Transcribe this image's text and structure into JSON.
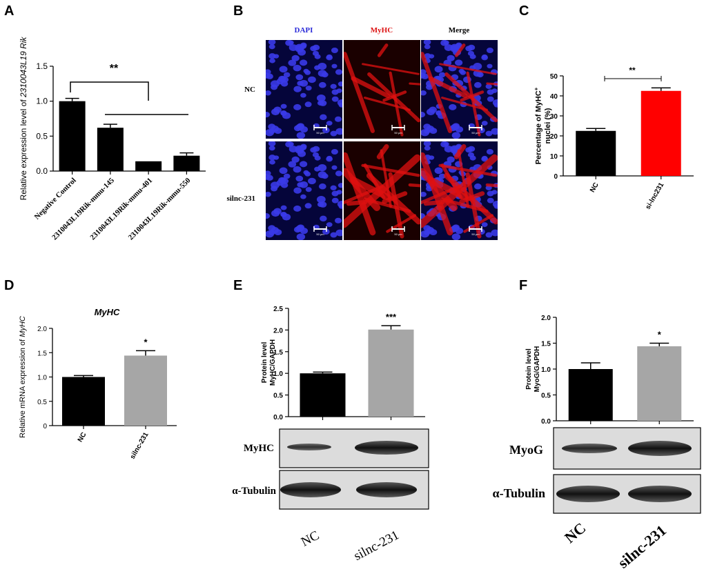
{
  "panel_letters": {
    "a": "A",
    "b": "B",
    "c": "C",
    "d": "D",
    "e": "E",
    "f": "F"
  },
  "colors": {
    "black_bar": "#000000",
    "gray_bar": "#a6a6a6",
    "red_bar": "#ff0000",
    "dapi": "#2020dd",
    "myhc": "#dd1111"
  },
  "micro": {
    "columns": [
      "DAPI",
      "MyHC",
      "Merge"
    ],
    "rows": [
      "NC",
      "silnc-231"
    ],
    "scale_label": "50 μm"
  },
  "blots": {
    "e": {
      "top_label": "MyHC",
      "bottom_label": "α-Tubulin",
      "lanes": [
        "NC",
        "silnc-231"
      ]
    },
    "f": {
      "top_label": "MyoG",
      "bottom_label": "α-Tubulin",
      "lanes": [
        "NC",
        "silnc-231"
      ]
    }
  },
  "chart_data": [
    {
      "id": "A",
      "type": "bar",
      "categories": [
        "Negative Control",
        "2310043L19Rik-mmu-145",
        "2310043L19Rik-mmu-401",
        "2310043L19Rik-mmu-550"
      ],
      "values": [
        1.0,
        0.62,
        0.14,
        0.22
      ],
      "errors": [
        0.04,
        0.05,
        0.0,
        0.04
      ],
      "ylabel": "Relative expression level of 2310043L19 Rik",
      "ylim": [
        0,
        1.5
      ],
      "yticks": [
        0.0,
        0.5,
        1.0,
        1.5
      ],
      "ytick_labels": [
        "0.0",
        "0.5",
        "1.0",
        "1.5"
      ],
      "annotations": [
        "**"
      ],
      "bar_color": "#000000"
    },
    {
      "id": "C",
      "type": "bar",
      "categories": [
        "NC",
        "si-lnc231"
      ],
      "values": [
        22.5,
        42.5
      ],
      "errors": [
        1.2,
        1.5
      ],
      "ylabel": "Percentage of MyHC+ nuclei (%)",
      "ylim": [
        0,
        50
      ],
      "yticks": [
        0,
        10,
        20,
        30,
        40,
        50
      ],
      "ytick_labels": [
        "0",
        "10",
        "20",
        "30",
        "40",
        "50"
      ],
      "annotations": [
        "**"
      ],
      "colors": [
        "#000000",
        "#ff0000"
      ]
    },
    {
      "id": "D",
      "type": "bar",
      "title": "MyHC",
      "categories": [
        "NC",
        "silnc-231"
      ],
      "values": [
        1.0,
        1.44
      ],
      "errors": [
        0.03,
        0.1
      ],
      "ylabel": "Relative mRNA expression of MyHC",
      "ylim": [
        0,
        2.0
      ],
      "yticks": [
        0,
        0.5,
        1.0,
        1.5,
        2.0
      ],
      "ytick_labels": [
        "0",
        "0.5",
        "1.0",
        "1.5",
        "2.0"
      ],
      "annotations": [
        "*"
      ],
      "colors": [
        "#000000",
        "#a6a6a6"
      ]
    },
    {
      "id": "E",
      "type": "bar",
      "categories": [
        "NC",
        "silnc-231"
      ],
      "values": [
        1.0,
        2.01
      ],
      "errors": [
        0.03,
        0.09
      ],
      "ylabel": "Protein level MyHC/GAPDH",
      "ylim": [
        0,
        2.5
      ],
      "yticks": [
        0,
        0.5,
        1.0,
        1.5,
        2.0,
        2.5
      ],
      "ytick_labels": [
        "0.0",
        "0.5",
        "1.0",
        "1.5",
        "2.0",
        "2.5"
      ],
      "annotations": [
        "***"
      ],
      "colors": [
        "#000000",
        "#a6a6a6"
      ]
    },
    {
      "id": "F",
      "type": "bar",
      "categories": [
        "NC",
        "silnc-231"
      ],
      "values": [
        1.0,
        1.44
      ],
      "errors": [
        0.12,
        0.06
      ],
      "ylabel": "Protein level MyoG/GAPDH",
      "ylim": [
        0,
        2.0
      ],
      "yticks": [
        0,
        0.5,
        1.0,
        1.5,
        2.0
      ],
      "ytick_labels": [
        "0.0",
        "0.5",
        "1.0",
        "1.5",
        "2.0"
      ],
      "annotations": [
        "*"
      ],
      "colors": [
        "#000000",
        "#a6a6a6"
      ]
    }
  ]
}
